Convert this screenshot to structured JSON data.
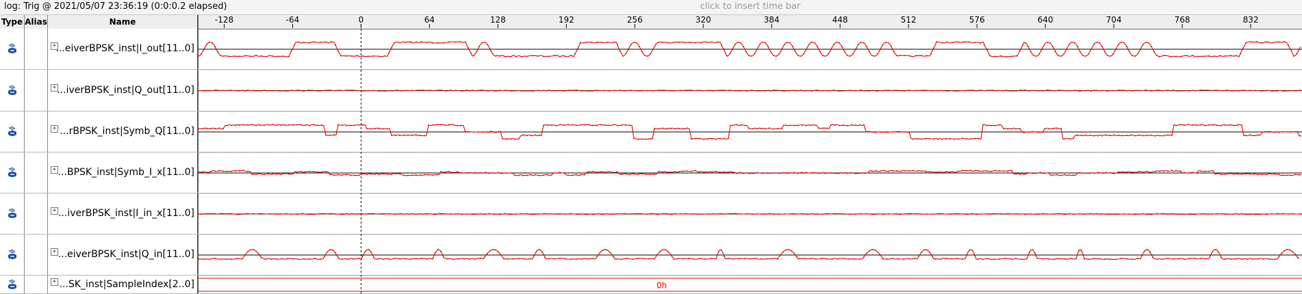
{
  "topbar": {
    "log_label": "log: Trig @ 2021/05/07 23:36:19 (0:0:0.2 elapsed)",
    "timebar_hint": "click to insert time bar"
  },
  "columns": {
    "type": "Type",
    "alias": "Alias",
    "name": "Name"
  },
  "timeline": {
    "tick_labels": [
      "-128",
      "-64",
      "0",
      "64",
      "128",
      "192",
      "256",
      "320",
      "384",
      "448",
      "512",
      "576",
      "640",
      "704",
      "768",
      "832"
    ],
    "trigger_position": "0",
    "axis_min": -152,
    "axis_max": 880
  },
  "signals": [
    {
      "name": "...eiverBPSK_inst|I_out[11..0]",
      "icon": "bus-signal-icon"
    },
    {
      "name": "...iverBPSK_inst|Q_out[11..0]",
      "icon": "bus-signal-icon"
    },
    {
      "name": "...rBPSK_inst|Symb_Q[11..0]",
      "icon": "bus-signal-icon"
    },
    {
      "name": "...BPSK_inst|Symb_I_x[11..0]",
      "icon": "bus-signal-icon"
    },
    {
      "name": "...iverBPSK_inst|I_in_x[11..0]",
      "icon": "bus-signal-icon"
    },
    {
      "name": "...eiverBPSK_inst|Q_in[11..0]",
      "icon": "bus-signal-icon"
    },
    {
      "name": "...SK_inst|SampleIndex[2..0]",
      "icon": "bus-signal-icon",
      "bus_value": "0h"
    }
  ],
  "colors": {
    "waveform": "#e00000",
    "baseline": "#000000",
    "grid": "#b5b5b5",
    "icon_blue": "#1f4fa8"
  }
}
